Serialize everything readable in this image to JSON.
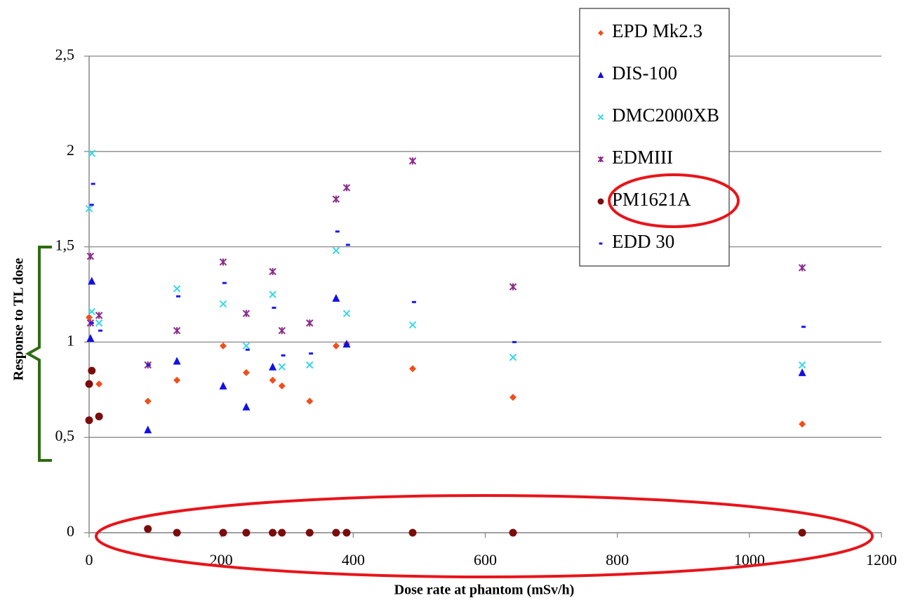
{
  "chart_data": {
    "type": "scatter",
    "x_label": "Dose rate at phantom (mSv/h)",
    "y_label": "Response to TL dose",
    "xlim": [
      0,
      1200
    ],
    "xticks": [
      0,
      200,
      400,
      600,
      800,
      1000,
      1200
    ],
    "ylim": [
      0,
      2.5
    ],
    "yticks": [
      0,
      {
        "value": 0.5,
        "label": "0,5"
      },
      1,
      {
        "value": 1.5,
        "label": "1,5"
      },
      2,
      {
        "value": 2.5,
        "label": "2,5"
      }
    ],
    "grid": true,
    "legend": "top-right",
    "series": [
      {
        "name": "EPD Mk2.3",
        "color": "#f04e1c",
        "marker": "diamond",
        "x": [
          0,
          15,
          89,
          133,
          203,
          238,
          278,
          292,
          334,
          374,
          390,
          490,
          642,
          1080
        ],
        "values": [
          1.13,
          0.78,
          0.69,
          0.8,
          0.98,
          0.84,
          0.8,
          0.77,
          0.69,
          0.98,
          0.99,
          0.86,
          0.71,
          0.57
        ]
      },
      {
        "name": "DIS-100",
        "color": "#1010e8",
        "marker": "triangle",
        "x": [
          2,
          4,
          89,
          133,
          203,
          238,
          278,
          374,
          390,
          1080
        ],
        "values": [
          1.02,
          1.32,
          0.54,
          0.9,
          0.77,
          0.66,
          0.87,
          1.23,
          0.99,
          0.84
        ]
      },
      {
        "name": "DMC2000XB",
        "color": "#38d8e8",
        "marker": "x",
        "x": [
          0,
          4,
          4,
          15,
          133,
          203,
          238,
          278,
          292,
          334,
          374,
          390,
          490,
          642,
          1080
        ],
        "values": [
          1.7,
          1.99,
          1.16,
          1.1,
          1.28,
          1.2,
          0.98,
          1.25,
          0.87,
          0.88,
          1.48,
          1.15,
          1.09,
          0.92,
          0.88
        ]
      },
      {
        "name": "EDMIII",
        "color": "#8a2c8a",
        "marker": "star",
        "x": [
          2,
          2,
          15,
          89,
          133,
          203,
          238,
          278,
          292,
          334,
          374,
          390,
          490,
          642,
          1080
        ],
        "values": [
          1.45,
          1.1,
          1.14,
          0.88,
          1.06,
          1.42,
          1.15,
          1.37,
          1.06,
          1.1,
          1.75,
          1.81,
          1.95,
          1.29,
          1.39
        ]
      },
      {
        "name": "PM1621A",
        "color": "#7a0c0c",
        "marker": "circle",
        "x": [
          0,
          4,
          0,
          15,
          89,
          133,
          203,
          238,
          278,
          292,
          334,
          374,
          390,
          490,
          642,
          1080
        ],
        "values": [
          0.78,
          0.85,
          0.59,
          0.61,
          0.02,
          0,
          0,
          0,
          0,
          0,
          0,
          0,
          0,
          0,
          0,
          0
        ]
      },
      {
        "name": "EDD 30",
        "color": "#1a1aee",
        "marker": "dash",
        "x": [
          4,
          6,
          4,
          17,
          90,
          135,
          205,
          240,
          280,
          294,
          336,
          376,
          392,
          492,
          644,
          1082
        ],
        "values": [
          1.72,
          1.83,
          1.1,
          1.06,
          0.88,
          1.24,
          1.31,
          0.96,
          1.18,
          0.93,
          0.94,
          1.58,
          1.51,
          1.21,
          1.0,
          1.08
        ]
      }
    ]
  }
}
